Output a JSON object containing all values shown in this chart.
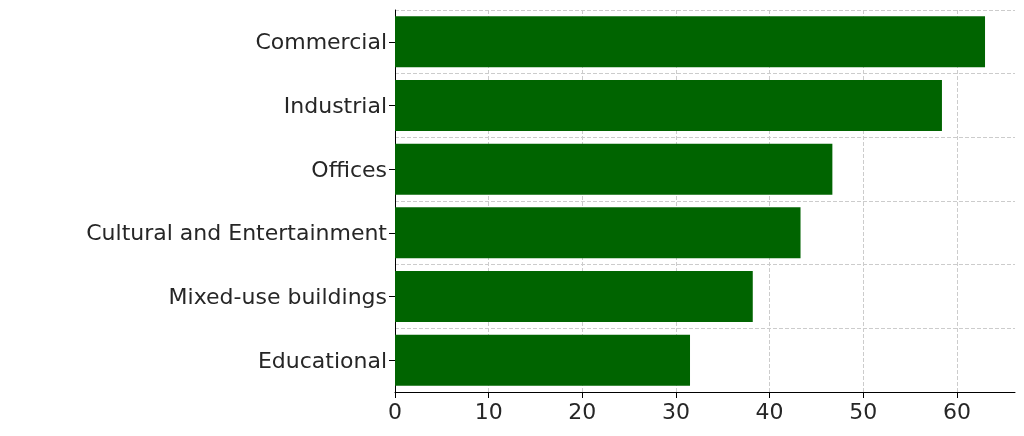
{
  "chart_data": {
    "type": "bar",
    "orientation": "horizontal",
    "categories": [
      "Commercial",
      "Industrial",
      "Offices",
      "Cultural and Entertainment",
      "Mixed-use buildings",
      "Educational"
    ],
    "values": [
      63.0,
      58.4,
      46.7,
      43.3,
      38.2,
      31.5
    ],
    "color": "#006400",
    "xlim": [
      0,
      66.2
    ],
    "xticks": [
      0,
      10,
      20,
      30,
      40,
      50,
      60
    ],
    "grid": true
  }
}
